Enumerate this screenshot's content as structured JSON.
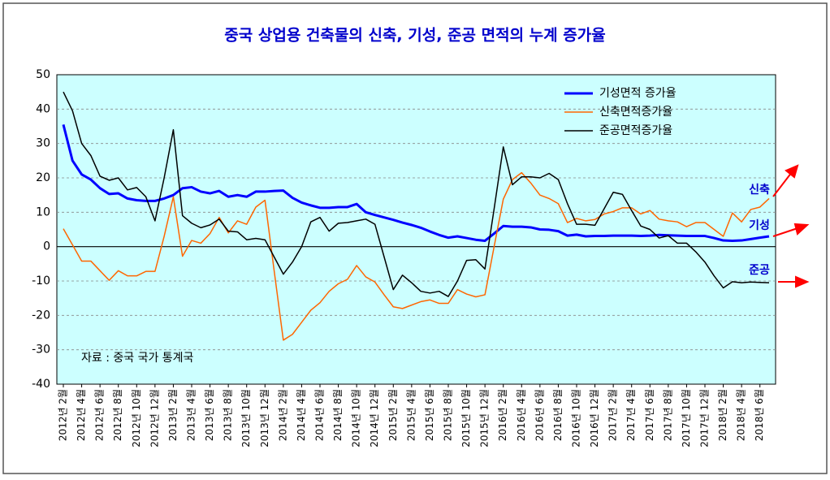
{
  "chart_data": {
    "type": "line",
    "title": "중국 상업용 건축물의 신축, 기성, 준공 면적의 누계 증가율",
    "annotations": [
      "신축",
      "기성",
      "준공"
    ],
    "source": "자료 : 중국 국가 통계국",
    "categories": [
      "2012년 2월",
      null,
      "2012년 4월",
      null,
      "2012년 6월",
      null,
      "2012년 8월",
      null,
      "2012년 10월",
      null,
      "2012년 12월",
      null,
      "2013년 2월",
      null,
      "2013년 4월",
      null,
      "2013년 6월",
      null,
      "2013년 8월",
      null,
      "2013년 10월",
      null,
      "2013년 12월",
      null,
      "2014년 2월",
      null,
      "2014년 4월",
      null,
      "2014년 6월",
      null,
      "2014년 8월",
      null,
      "2014년 10월",
      null,
      "2014년 12월",
      null,
      "2015년 2월",
      null,
      "2015년 4월",
      null,
      "2015년 6월",
      null,
      "2015년 8월",
      null,
      "2015년 10월",
      null,
      "2015년 12월",
      null,
      "2016년 2월",
      null,
      "2016년 4월",
      null,
      "2016년 6월",
      null,
      "2016년 8월",
      null,
      "2016년 10월",
      null,
      "2016년 12월",
      null,
      "2017년 2월",
      null,
      "2017년 4월",
      null,
      "2017년 6월",
      null,
      "2017년 8월",
      null,
      "2017년 10월",
      null,
      "2017년 12월",
      null,
      "2018년 2월",
      null,
      "2018년 4월",
      null,
      "2018년 6월",
      null
    ],
    "series": [
      {
        "name": "기성면적 증가율",
        "color": "#0000ff",
        "width": 3,
        "values": [
          35.5,
          25,
          21,
          19.5,
          17,
          15.3,
          15.5,
          14,
          13.5,
          13.3,
          13.3,
          14,
          15,
          17,
          17.3,
          16,
          15.5,
          16.2,
          14.5,
          15,
          14.5,
          16,
          16,
          16.2,
          16.3,
          14.2,
          12.8,
          12,
          11.3,
          11.3,
          11.5,
          11.5,
          12.4,
          10,
          9.2,
          8.5,
          7.8,
          7,
          6.3,
          5.5,
          4.4,
          3.4,
          2.6,
          3,
          2.5,
          2,
          1.7,
          3.8,
          6,
          5.8,
          5.8,
          5.6,
          5,
          4.9,
          4.5,
          3.2,
          3.5,
          3,
          3.1,
          3.1,
          3.2,
          3.2,
          3.2,
          3.1,
          3.2,
          3.4,
          3.3,
          3.2,
          3.1,
          3.1,
          3.1,
          2.5,
          1.8,
          1.7,
          1.8,
          2.2,
          2.6,
          3
        ]
      },
      {
        "name": "신축면적증가율",
        "color": "#ff6600",
        "width": 1.5,
        "values": [
          5.2,
          0.5,
          -4.2,
          -4.2,
          -7,
          -9.8,
          -7,
          -8.5,
          -8.5,
          -7.2,
          -7.2,
          3,
          14.5,
          -2.8,
          1.8,
          1,
          3.8,
          8.5,
          4,
          7.5,
          6.5,
          11.5,
          13.5,
          -7,
          -27.2,
          -25.5,
          -22,
          -18.5,
          -16.3,
          -13,
          -10.8,
          -9.5,
          -5.5,
          -8.8,
          -10.3,
          -14,
          -17.5,
          -18,
          -17,
          -16,
          -15.5,
          -16.5,
          -16.5,
          -12.5,
          -13.8,
          -14.6,
          -14,
          0,
          13.8,
          19.5,
          21.5,
          18.5,
          15,
          14,
          12.5,
          7,
          8.2,
          7.5,
          7.9,
          9.5,
          10.2,
          11.3,
          11.3,
          9.5,
          10.5,
          8,
          7.5,
          7.2,
          5.8,
          7,
          7,
          5,
          3,
          9.8,
          7.2,
          10.8,
          11.5,
          14
        ]
      },
      {
        "name": "준공면적증가율",
        "color": "#000000",
        "width": 1.5,
        "values": [
          45,
          39.5,
          30,
          26.5,
          20.5,
          19.3,
          20,
          16.5,
          17.2,
          14.5,
          7.5,
          20,
          34,
          9,
          6.8,
          5.5,
          6.3,
          8,
          4.5,
          4.3,
          2,
          2.4,
          2,
          -3,
          -8,
          -4.5,
          0,
          7.2,
          8.5,
          4.5,
          6.8,
          7,
          7.5,
          8,
          6.5,
          -3,
          -12.5,
          -8.3,
          -10.5,
          -13,
          -13.5,
          -13,
          -14.5,
          -10,
          -4,
          -3.8,
          -6.5,
          11,
          29,
          18,
          20.3,
          20.3,
          20,
          21.3,
          19.5,
          12.5,
          6.5,
          6.5,
          6.2,
          11,
          15.8,
          15.2,
          10.5,
          6,
          5,
          2.5,
          3.2,
          1,
          1,
          -1.5,
          -4.5,
          -8.5,
          -12,
          -10.2,
          -10.5,
          -10.3,
          -10.4,
          -10.5
        ]
      }
    ],
    "ylim": [
      -40,
      50
    ],
    "yticks": [
      -40,
      -30,
      -20,
      -10,
      0,
      10,
      20,
      30,
      40,
      50
    ],
    "grid": true
  }
}
